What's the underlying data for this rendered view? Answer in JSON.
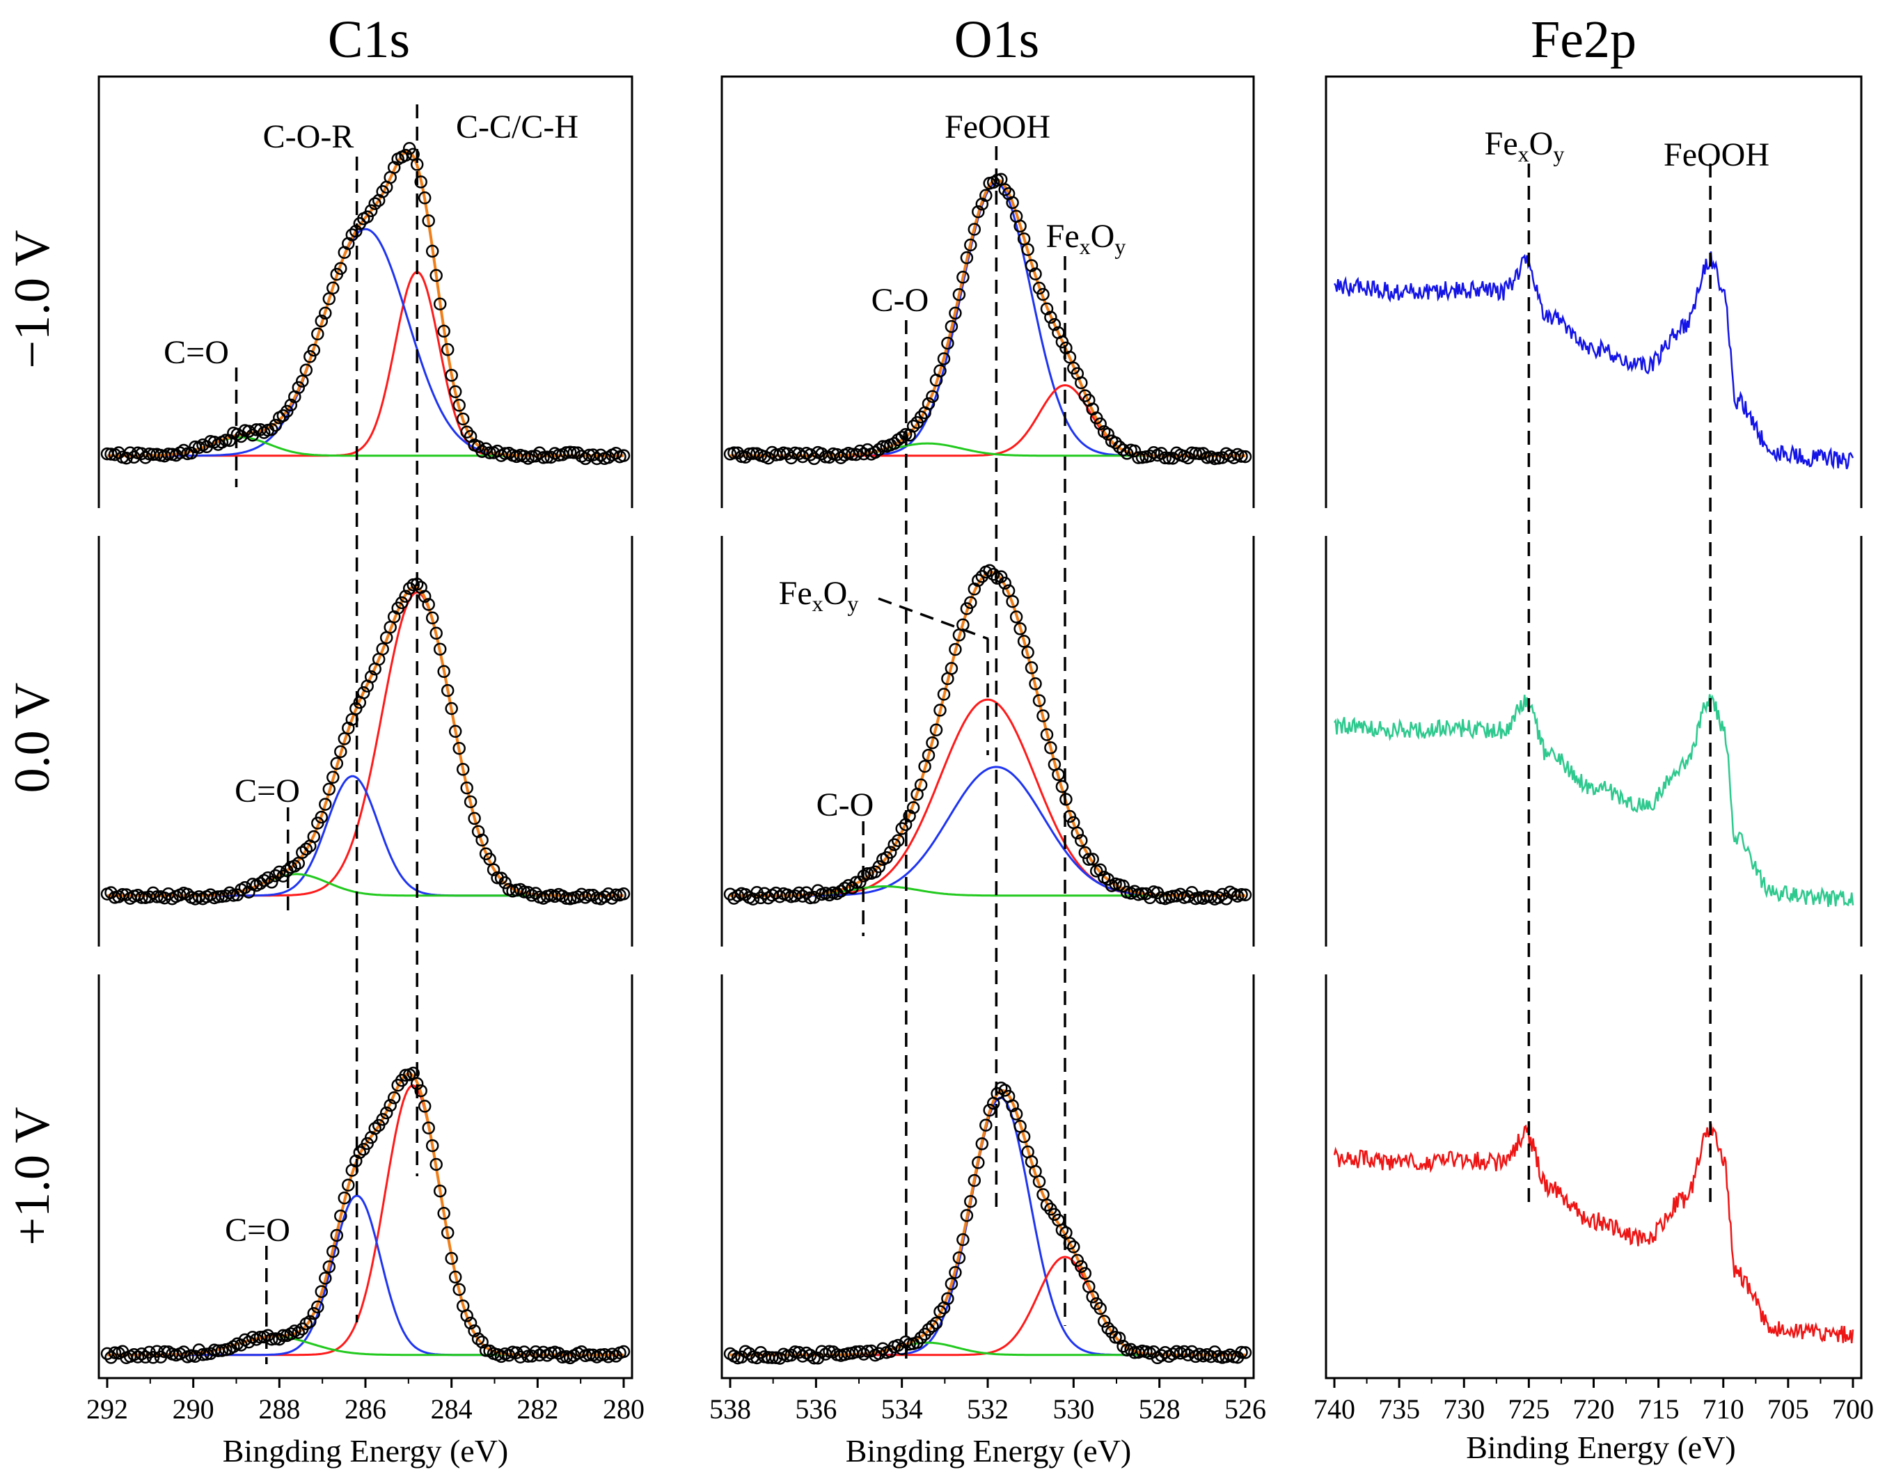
{
  "figure": {
    "row_labels": [
      "−1.0 V",
      "0.0 V",
      "+1.0 V"
    ]
  },
  "colors": {
    "data_points": "#000000",
    "fit_envelope": "#f07f1a",
    "component_blue": "#1f35f0",
    "component_red": "#ff1a1a",
    "component_green": "#22c91e",
    "fe_neg1": "#1414e6",
    "fe_zero": "#2ec98e",
    "fe_pos1": "#ee1515"
  },
  "chart_data": [
    {
      "type": "scatter",
      "title": "C1s",
      "xlabel": "Bingding Energy (eV)",
      "ylabel": "",
      "xlim": [
        292,
        280
      ],
      "xticks": [
        292,
        290,
        288,
        286,
        284,
        282,
        280
      ],
      "rows": [
        {
          "label": "−1.0 V",
          "peaks": [
            {
              "name": "C-C/C-H",
              "center": 284.8,
              "height": 0.6,
              "fwhm": 1.2,
              "color": "red"
            },
            {
              "name": "C-O-R",
              "center": 286.0,
              "height": 0.74,
              "fwhm": 2.3,
              "color": "blue"
            },
            {
              "name": "C=O",
              "center": 288.9,
              "height": 0.06,
              "fwhm": 1.6,
              "color": "green"
            }
          ],
          "annotations": [
            {
              "text": "C=O",
              "x": 289.0
            },
            {
              "text": "C-O-R",
              "x": 286.2
            },
            {
              "text": "C-C/C-H",
              "x": 284.8
            }
          ]
        },
        {
          "label": "0.0 V",
          "peaks": [
            {
              "name": "C-C/C-H",
              "center": 284.8,
              "height": 0.99,
              "fwhm": 1.9,
              "color": "red"
            },
            {
              "name": "C-O-R",
              "center": 286.3,
              "height": 0.39,
              "fwhm": 1.4,
              "color": "blue"
            },
            {
              "name": "C=O",
              "center": 287.6,
              "height": 0.07,
              "fwhm": 1.7,
              "color": "green"
            }
          ],
          "annotations": [
            {
              "text": "C=O",
              "x": 287.8
            }
          ]
        },
        {
          "label": "+1.0 V",
          "peaks": [
            {
              "name": "C-C/C-H",
              "center": 284.9,
              "height": 0.88,
              "fwhm": 1.5,
              "color": "red"
            },
            {
              "name": "C-O-R",
              "center": 286.2,
              "height": 0.52,
              "fwhm": 1.3,
              "color": "blue"
            },
            {
              "name": "C=O",
              "center": 288.1,
              "height": 0.06,
              "fwhm": 2.0,
              "color": "green"
            }
          ],
          "annotations": [
            {
              "text": "C=O",
              "x": 288.3
            }
          ]
        }
      ]
    },
    {
      "type": "scatter",
      "title": "O1s",
      "xlabel": "Bingding Energy (eV)",
      "ylabel": "",
      "xlim": [
        538,
        526
      ],
      "xticks": [
        538,
        536,
        534,
        532,
        530,
        528,
        526
      ],
      "rows": [
        {
          "label": "−1.0 V",
          "peaks": [
            {
              "name": "FeOOH",
              "center": 531.8,
              "height": 0.89,
              "fwhm": 1.9,
              "color": "blue"
            },
            {
              "name": "FexOy",
              "center": 530.2,
              "height": 0.23,
              "fwhm": 1.4,
              "color": "red"
            },
            {
              "name": "C-O",
              "center": 533.4,
              "height": 0.04,
              "fwhm": 1.8,
              "color": "green"
            }
          ],
          "annotations": [
            {
              "text": "FeOOH",
              "x": 531.8
            },
            {
              "text": "FexOy",
              "x": 530.2
            },
            {
              "text": "C-O",
              "x": 533.9
            }
          ]
        },
        {
          "label": "0.0 V",
          "peaks": [
            {
              "name": "FexOy",
              "center": 532.0,
              "height": 0.64,
              "fwhm": 2.6,
              "color": "red"
            },
            {
              "name": "FeOOH",
              "center": 531.8,
              "height": 0.42,
              "fwhm": 2.6,
              "color": "blue"
            },
            {
              "name": "C-O",
              "center": 534.4,
              "height": 0.03,
              "fwhm": 1.8,
              "color": "green"
            }
          ],
          "annotations": [
            {
              "text": "FexOy",
              "x": 532.0
            },
            {
              "text": "C-O",
              "x": 534.9
            }
          ]
        },
        {
          "label": "+1.0 V",
          "peaks": [
            {
              "name": "FeOOH",
              "center": 531.7,
              "height": 0.84,
              "fwhm": 1.6,
              "color": "blue"
            },
            {
              "name": "FexOy",
              "center": 530.2,
              "height": 0.32,
              "fwhm": 1.5,
              "color": "red"
            },
            {
              "name": "C-O",
              "center": 533.4,
              "height": 0.04,
              "fwhm": 1.6,
              "color": "green"
            }
          ],
          "annotations": []
        }
      ]
    },
    {
      "type": "line",
      "title": "Fe2p",
      "xlabel": "Binding Energy (eV)",
      "ylabel": "",
      "xlim": [
        740,
        700
      ],
      "xticks": [
        740,
        735,
        730,
        725,
        720,
        715,
        710,
        705,
        700
      ],
      "reference_lines": [
        {
          "name": "FexOy",
          "x": 725
        },
        {
          "name": "FeOOH",
          "x": 711
        }
      ],
      "series": [
        {
          "name": "−1.0 V",
          "color": "fe_neg1"
        },
        {
          "name": "0.0 V",
          "color": "fe_zero"
        },
        {
          "name": "+1.0 V",
          "color": "fe_pos1"
        }
      ],
      "key_points": {
        "x": [
          740,
          735,
          730,
          727,
          725.2,
          723.5,
          720,
          716,
          713,
          711,
          710,
          709,
          706,
          703,
          700
        ],
        "y": [
          0.78,
          0.76,
          0.77,
          0.76,
          0.88,
          0.65,
          0.51,
          0.43,
          0.6,
          0.9,
          0.78,
          0.28,
          0.05,
          0.03,
          0.02
        ]
      }
    }
  ],
  "annotation_text": {
    "c_o": "C=O",
    "c_o_r": "C-O-R",
    "c_c_h": "C-C/C-H",
    "feooh": "FeOOH",
    "fexoy_main": "Fe",
    "fexoy_sub1": "x",
    "fexoy_mid": "O",
    "fexoy_sub2": "y",
    "co_single": "C-O"
  }
}
